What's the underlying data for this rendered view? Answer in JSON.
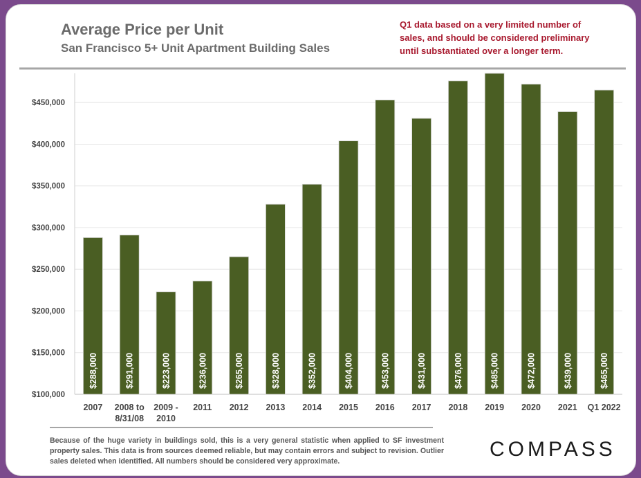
{
  "header": {
    "title": "Average Price per Unit",
    "subtitle": "San Francisco 5+ Unit Apartment Building Sales",
    "note": "Q1 data based on a very limited number of sales, and should be considered preliminary until substantiated over a longer term."
  },
  "footer": {
    "disclaimer": "Because of the huge variety in buildings sold, this is a very general statistic when applied to SF investment property sales. This data is from sources deemed reliable, but may contain errors and subject to revision. Outlier sales deleted when identified. All numbers should be considered very approximate.",
    "logo": "COMPASS"
  },
  "colors": {
    "bar": "#4a5e23",
    "note": "#a8192e",
    "title": "#6b6b6b",
    "grid": "#e6e6e6",
    "frame": "#7b4a8c"
  },
  "chart_data": {
    "type": "bar",
    "title": "Average Price per Unit",
    "subtitle": "San Francisco 5+ Unit Apartment Building Sales",
    "xlabel": "",
    "ylabel": "",
    "categories": [
      [
        "2007"
      ],
      [
        "2008 to",
        "8/31/08"
      ],
      [
        "2009 -",
        "2010"
      ],
      [
        "2011"
      ],
      [
        "2012"
      ],
      [
        "2013"
      ],
      [
        "2014"
      ],
      [
        "2015"
      ],
      [
        "2016"
      ],
      [
        "2017"
      ],
      [
        "2018"
      ],
      [
        "2019"
      ],
      [
        "2020"
      ],
      [
        "2021"
      ],
      [
        "Q1 2022"
      ]
    ],
    "values": [
      288000,
      291000,
      223000,
      236000,
      265000,
      328000,
      352000,
      404000,
      453000,
      431000,
      476000,
      485000,
      472000,
      439000,
      465000
    ],
    "data_labels": [
      "$288,000",
      "$291,000",
      "$223,000",
      "$236,000",
      "$265,000",
      "$328,000",
      "$352,000",
      "$404,000",
      "$453,000",
      "$431,000",
      "$476,000",
      "$485,000",
      "$472,000",
      "$439,000",
      "$465,000"
    ],
    "ylim": [
      100000,
      490000
    ],
    "yticks": [
      100000,
      150000,
      200000,
      250000,
      300000,
      350000,
      400000,
      450000
    ],
    "ytick_labels": [
      "$100,000",
      "$150,000",
      "$200,000",
      "$250,000",
      "$300,000",
      "$350,000",
      "$400,000",
      "$450,000"
    ],
    "grid": true,
    "legend": "none"
  }
}
